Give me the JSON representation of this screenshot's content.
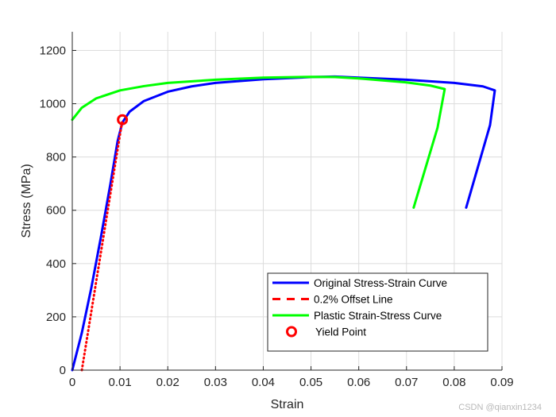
{
  "chart_data": {
    "type": "line",
    "xlabel": "Strain",
    "ylabel": "Stress (MPa)",
    "xlim": [
      0,
      0.09
    ],
    "ylim": [
      0,
      1270
    ],
    "xticks": [
      0,
      0.01,
      0.02,
      0.03,
      0.04,
      0.05,
      0.06,
      0.07,
      0.08,
      0.09
    ],
    "yticks": [
      0,
      200,
      400,
      600,
      800,
      1000,
      1200
    ],
    "grid": true,
    "legend_position": "lower-right",
    "series": [
      {
        "name": "Original Stress-Strain Curve",
        "color": "#0000ff",
        "style": "solid",
        "points": [
          [
            0,
            0
          ],
          [
            0.002,
            140
          ],
          [
            0.004,
            310
          ],
          [
            0.006,
            500
          ],
          [
            0.008,
            700
          ],
          [
            0.0095,
            860
          ],
          [
            0.0105,
            930
          ],
          [
            0.012,
            970
          ],
          [
            0.015,
            1010
          ],
          [
            0.02,
            1045
          ],
          [
            0.025,
            1065
          ],
          [
            0.03,
            1078
          ],
          [
            0.04,
            1092
          ],
          [
            0.05,
            1100
          ],
          [
            0.055,
            1102
          ],
          [
            0.06,
            1098
          ],
          [
            0.07,
            1090
          ],
          [
            0.08,
            1078
          ],
          [
            0.086,
            1065
          ],
          [
            0.0885,
            1050
          ],
          [
            0.0875,
            920
          ],
          [
            0.0825,
            610
          ]
        ]
      },
      {
        "name": "0.2% Offset Line",
        "color": "#ff0000",
        "style": "dotted",
        "points": [
          [
            0.002,
            0
          ],
          [
            0.0105,
            940
          ]
        ]
      },
      {
        "name": "Plastic Strain-Stress Curve",
        "color": "#00ff00",
        "style": "solid",
        "points": [
          [
            0,
            940
          ],
          [
            0.002,
            985
          ],
          [
            0.005,
            1020
          ],
          [
            0.01,
            1050
          ],
          [
            0.015,
            1066
          ],
          [
            0.02,
            1078
          ],
          [
            0.03,
            1090
          ],
          [
            0.04,
            1098
          ],
          [
            0.05,
            1101
          ],
          [
            0.055,
            1100
          ],
          [
            0.06,
            1095
          ],
          [
            0.07,
            1080
          ],
          [
            0.075,
            1068
          ],
          [
            0.078,
            1055
          ],
          [
            0.0765,
            910
          ],
          [
            0.0715,
            610
          ]
        ]
      }
    ],
    "markers": [
      {
        "name": "Yield Point",
        "color": "#ff0000",
        "shape": "circle",
        "x": 0.0105,
        "y": 940
      }
    ]
  },
  "watermark": "CSDN @qianxin1234"
}
